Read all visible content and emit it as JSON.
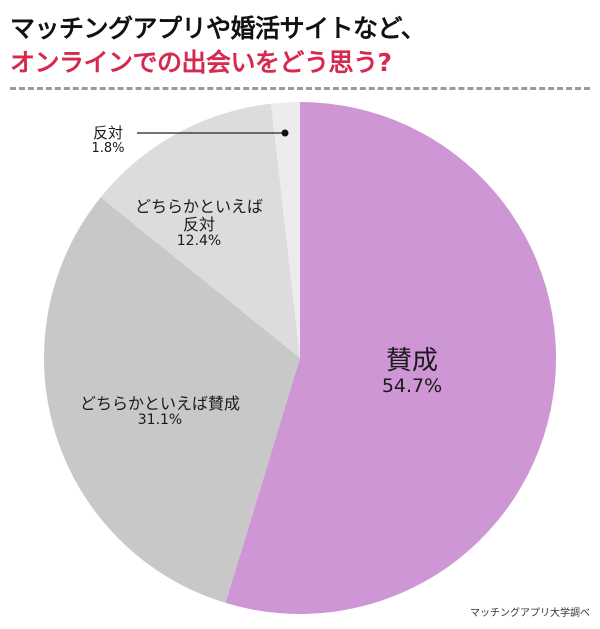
{
  "header": {
    "title_line1": "マッチングアプリや婚活サイトなど、",
    "title_line2": "オンラインでの出会いをどう思う?"
  },
  "colors": {
    "title_accent": "#d6294e",
    "divider": "#9a9a9a"
  },
  "slices": [
    {
      "name": "賛成",
      "pct_label": "54.7%",
      "value": 54.7,
      "color": "#cf96d6"
    },
    {
      "name": "どちらかといえば賛成",
      "pct_label": "31.1%",
      "value": 31.1,
      "color": "#c8c8c8"
    },
    {
      "name_line1": "どちらかといえば",
      "name_line2": "反対",
      "pct_label": "12.4%",
      "value": 12.4,
      "color": "#dcdcdc"
    },
    {
      "name": "反対",
      "pct_label": "1.8%",
      "value": 1.8,
      "color": "#ececec"
    }
  ],
  "source": "マッチングアプリ大学調べ",
  "chart_data": {
    "type": "pie",
    "title": "マッチングアプリや婚活サイトなど、オンラインでの出会いをどう思う?",
    "categories": [
      "賛成",
      "どちらかといえば賛成",
      "どちらかといえば反対",
      "反対"
    ],
    "values": [
      54.7,
      31.1,
      12.4,
      1.8
    ],
    "colors": [
      "#cf96d6",
      "#c8c8c8",
      "#dcdcdc",
      "#ececec"
    ],
    "start_angle": "12 o'clock, clockwise",
    "legend": "none (direct labels)",
    "source": "マッチングアプリ大学調べ"
  }
}
